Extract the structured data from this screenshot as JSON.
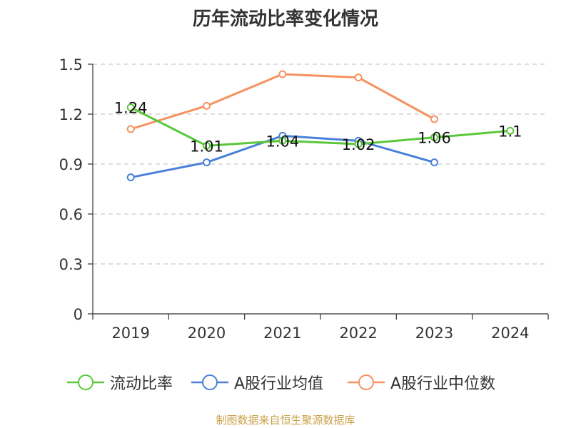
{
  "chart_data": {
    "type": "line",
    "title": "历年流动比率变化情况",
    "categories": [
      "2019",
      "2020",
      "2021",
      "2022",
      "2023",
      "2024"
    ],
    "ylim": [
      0,
      1.5
    ],
    "yticks": [
      "0",
      "0.3",
      "0.6",
      "0.9",
      "1.2",
      "1.5"
    ],
    "grid": true,
    "legend_position": "bottom",
    "series": [
      {
        "name": "流动比率",
        "color": "#5ac83a",
        "values": [
          1.24,
          1.01,
          1.04,
          1.02,
          1.06,
          1.1
        ],
        "labels": [
          "1.24",
          "1.01",
          "1.04",
          "1.02",
          "1.06",
          "1.1"
        ]
      },
      {
        "name": "A股行业均值",
        "color": "#4a80d8",
        "values": [
          0.82,
          0.91,
          1.07,
          1.04,
          0.91,
          null
        ]
      },
      {
        "name": "A股行业中位数",
        "color": "#f59260",
        "values": [
          1.11,
          1.25,
          1.44,
          1.42,
          1.17,
          null
        ]
      }
    ]
  },
  "source_note": "制图数据来自恒生聚源数据库"
}
